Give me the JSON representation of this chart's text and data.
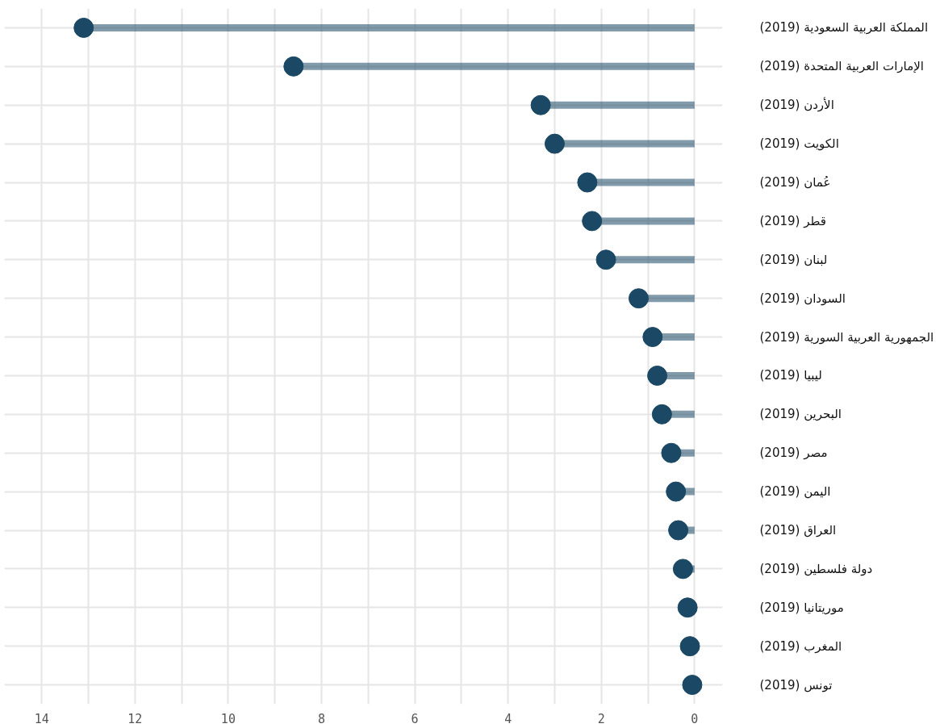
{
  "chart_data": {
    "type": "lollipop",
    "orientation": "horizontal",
    "categories": [
      "المملكة العربية السعودية (2019)",
      "الإمارات العربية المتحدة (2019)",
      "الأردن (2019)",
      "الكويت (2019)",
      "عُمان (2019)",
      "قطر (2019)",
      "لبنان (2019)",
      "السودان (2019)",
      "الجمهورية العربية السورية (2019)",
      "ليبيا (2019)",
      "البحرين (2019)",
      "مصر (2019)",
      "اليمن (2019)",
      "العراق (2019)",
      "دولة فلسطين (2019)",
      "موريتانيا (2019)",
      "المغرب (2019)",
      "تونس (2019)"
    ],
    "values": [
      13.1,
      8.6,
      3.3,
      3.0,
      2.3,
      2.2,
      1.9,
      1.2,
      0.9,
      0.8,
      0.7,
      0.5,
      0.4,
      0.35,
      0.25,
      0.15,
      0.1,
      0.05
    ],
    "color": "#1b4965",
    "xlim": [
      14.8,
      -0.6
    ],
    "xticks": [
      14,
      12,
      10,
      8,
      6,
      4,
      2,
      0
    ],
    "grid": true,
    "marker": "circle"
  }
}
